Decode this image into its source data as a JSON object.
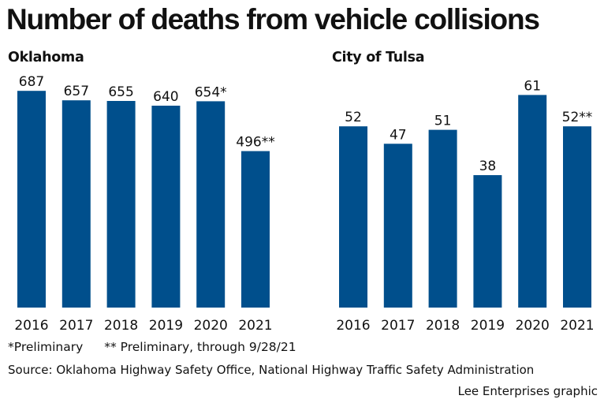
{
  "title": "Number of deaths from vehicle collisions",
  "bar_color": "#004f8c",
  "chart_data": [
    {
      "type": "bar",
      "title": "Oklahoma",
      "categories": [
        "2016",
        "2017",
        "2018",
        "2019",
        "2020",
        "2021"
      ],
      "values": [
        687,
        657,
        655,
        640,
        654,
        496
      ],
      "labels": [
        "687",
        "657",
        "655",
        "640",
        "654*",
        "496**"
      ],
      "ylim": [
        0,
        700
      ]
    },
    {
      "type": "bar",
      "title": "City of Tulsa",
      "categories": [
        "2016",
        "2017",
        "2018",
        "2019",
        "2020",
        "2021"
      ],
      "values": [
        52,
        47,
        51,
        38,
        61,
        52
      ],
      "labels": [
        "52",
        "47",
        "51",
        "38",
        "61",
        "52**"
      ],
      "ylim": [
        0,
        62
      ]
    }
  ],
  "notes": {
    "preliminary": "*Preliminary",
    "preliminary_through": "** Preliminary, through 9/28/21"
  },
  "source": "Source: Oklahoma Highway Safety Office, National Highway Traffic Safety Administration",
  "credit": "Lee Enterprises graphic"
}
